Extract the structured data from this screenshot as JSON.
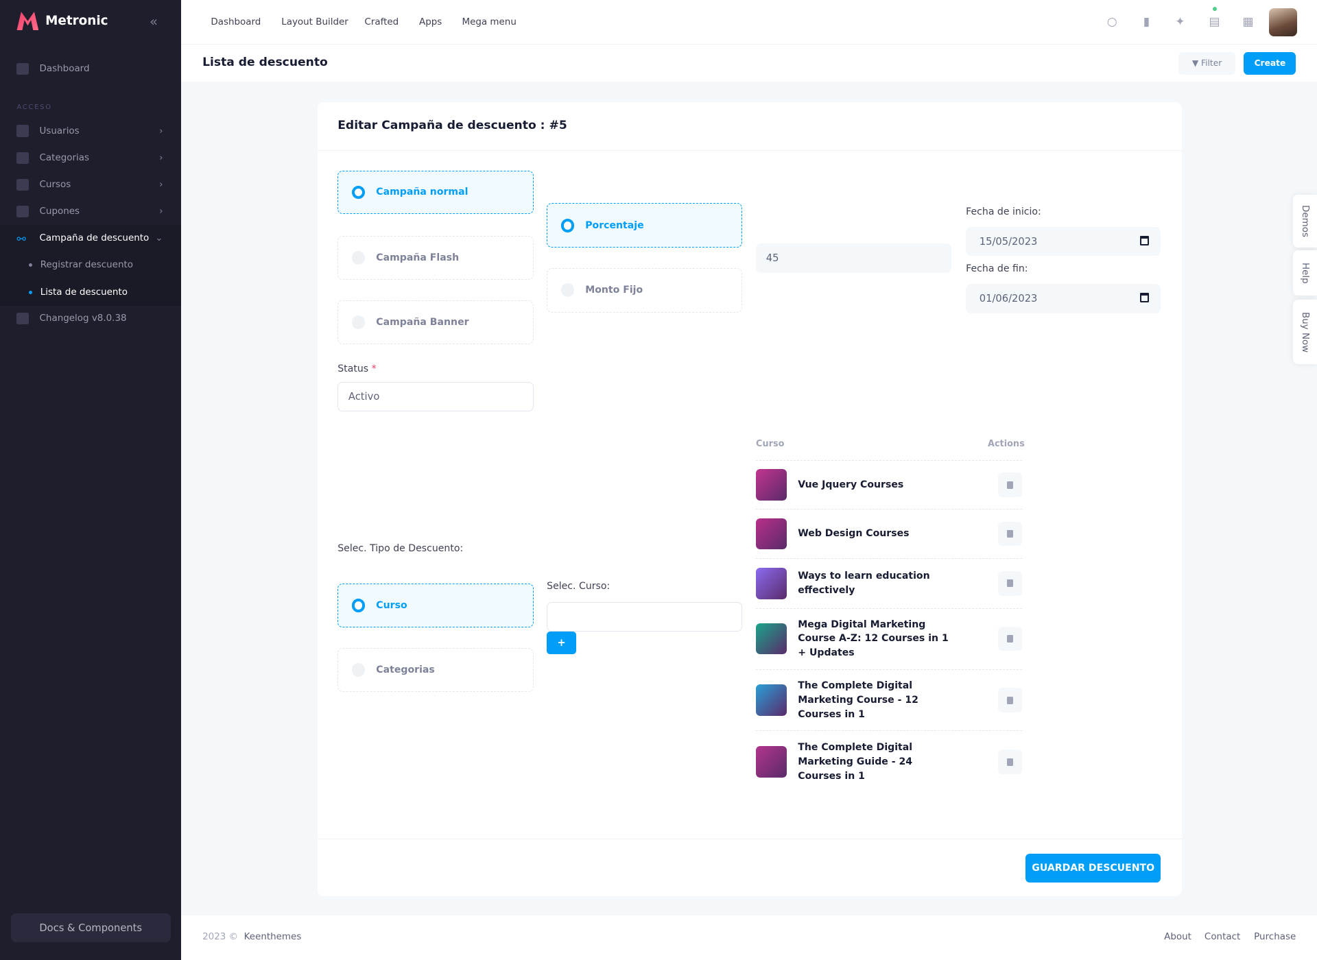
{
  "app": {
    "name": "Metronic"
  },
  "sidebar": {
    "dashboard": "Dashboard",
    "section": "ACCESO",
    "items": [
      {
        "label": "Usuarios"
      },
      {
        "label": "Categorias"
      },
      {
        "label": "Cursos"
      },
      {
        "label": "Cupones"
      },
      {
        "label": "Campaña de descuento"
      }
    ],
    "sub": [
      {
        "label": "Registrar descuento"
      },
      {
        "label": "Lista de descuento"
      }
    ],
    "changelog": "Changelog v8.0.38",
    "docs": "Docs & Components"
  },
  "header": {
    "nav": [
      "Dashboard",
      "Layout Builder",
      "Crafted",
      "Apps",
      "Mega menu"
    ]
  },
  "toolbar": {
    "title": "Lista de descuento",
    "filter": "Filter",
    "create": "Create"
  },
  "form": {
    "title": "Editar Campaña de descuento : #5",
    "campaign_types": [
      "Campaña normal",
      "Campaña Flash",
      "Campaña Banner"
    ],
    "campaign_selected": "Campaña normal",
    "discount_modes": [
      "Porcentaje",
      "Monto Fijo"
    ],
    "discount_selected": "Porcentaje",
    "amount": "45",
    "start_label": "Fecha de inicio:",
    "start_value": "15/05/2023",
    "end_label": "Fecha de fin:",
    "end_value": "01/06/2023",
    "status_label": "Status",
    "status_required": "*",
    "status_value": "Activo",
    "tipo_label": "Selec. Tipo de Descuento:",
    "tipo_options": [
      "Curso",
      "Categorias"
    ],
    "tipo_selected": "Curso",
    "curso_label": "Selec. Curso:",
    "curso_value": "",
    "add_label": "+",
    "save": "GUARDAR DESCUENTO"
  },
  "table": {
    "headers": [
      "Curso",
      "Actions"
    ],
    "rows": [
      {
        "name": "Vue Jquery Courses",
        "thumb": "#c2358f"
      },
      {
        "name": "Web Design Courses",
        "thumb": "#b8308a"
      },
      {
        "name": "Ways to learn education effectively",
        "thumb": "#8b6cf0"
      },
      {
        "name": "Mega Digital Marketing Course A-Z: 12 Courses in 1 + Updates",
        "thumb": "#1aa58a"
      },
      {
        "name": "The Complete Digital Marketing Course - 12 Courses in 1",
        "thumb": "#2a9fd6"
      },
      {
        "name": "The Complete Digital Marketing Guide - 24 Courses in 1",
        "thumb": "#b2358c"
      }
    ]
  },
  "side_tabs": [
    "Demos",
    "Help",
    "Buy Now"
  ],
  "footer": {
    "year": "2023 ©",
    "company": "Keenthemes",
    "links": [
      "About",
      "Contact",
      "Purchase"
    ]
  },
  "colors": {
    "primary": "#009ef7",
    "sidebar": "#1e1e2d"
  }
}
